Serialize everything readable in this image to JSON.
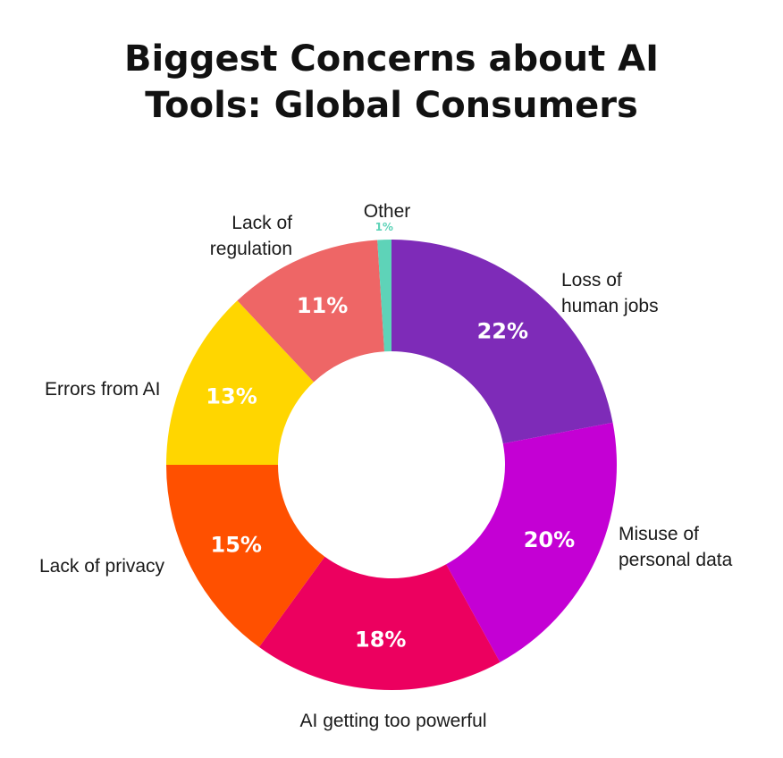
{
  "chart_data": {
    "type": "pie",
    "title_lines": [
      "Biggest Concerns about AI",
      "Tools: Global Consumers"
    ],
    "slices": [
      {
        "label_lines": [
          "Loss of",
          "human jobs"
        ],
        "value": 22,
        "display": "22%",
        "color": "#7e2bb8"
      },
      {
        "label_lines": [
          "Misuse of",
          "personal data"
        ],
        "value": 20,
        "display": "20%",
        "color": "#c400d4"
      },
      {
        "label_lines": [
          "AI getting too powerful"
        ],
        "value": 18,
        "display": "18%",
        "color": "#ec005f"
      },
      {
        "label_lines": [
          "Lack of privacy"
        ],
        "value": 15,
        "display": "15%",
        "color": "#ff5000"
      },
      {
        "label_lines": [
          "Errors from AI"
        ],
        "value": 13,
        "display": "13%",
        "color": "#ffd600"
      },
      {
        "label_lines": [
          "Lack of",
          "regulation"
        ],
        "value": 11,
        "display": "11%",
        "color": "#ee6666"
      },
      {
        "label_lines": [
          "Other"
        ],
        "value": 1,
        "display": "1%",
        "color": "#5ed3b8"
      }
    ],
    "donut": true,
    "start": "top",
    "direction": "clockwise"
  }
}
